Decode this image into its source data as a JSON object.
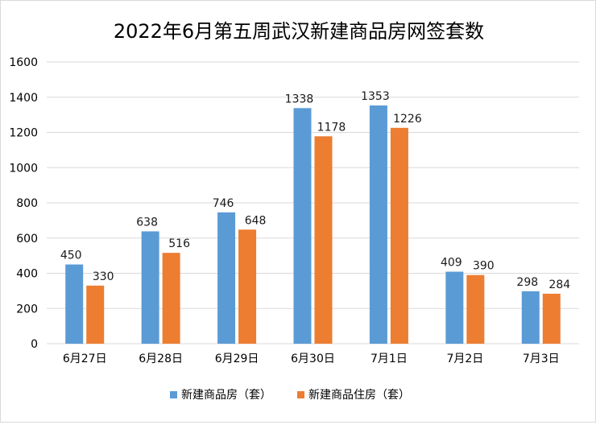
{
  "chart_data": {
    "type": "bar",
    "title": "2022年6月第五周武汉新建商品房网签套数",
    "categories": [
      "6月27日",
      "6月28日",
      "6月29日",
      "6月30日",
      "7月1日",
      "7月2日",
      "7月3日"
    ],
    "series": [
      {
        "name": "新建商品房（套）",
        "color": "#5b9bd5",
        "values": [
          450,
          638,
          746,
          1338,
          1353,
          409,
          298
        ]
      },
      {
        "name": "新建商品住房（套）",
        "color": "#ed7d31",
        "values": [
          330,
          516,
          648,
          1178,
          1226,
          390,
          284
        ]
      }
    ],
    "ylim": [
      0,
      1600
    ],
    "yticks": [
      0,
      200,
      400,
      600,
      800,
      1000,
      1200,
      1400,
      1600
    ],
    "gridlines": true,
    "legend_position": "bottom"
  }
}
